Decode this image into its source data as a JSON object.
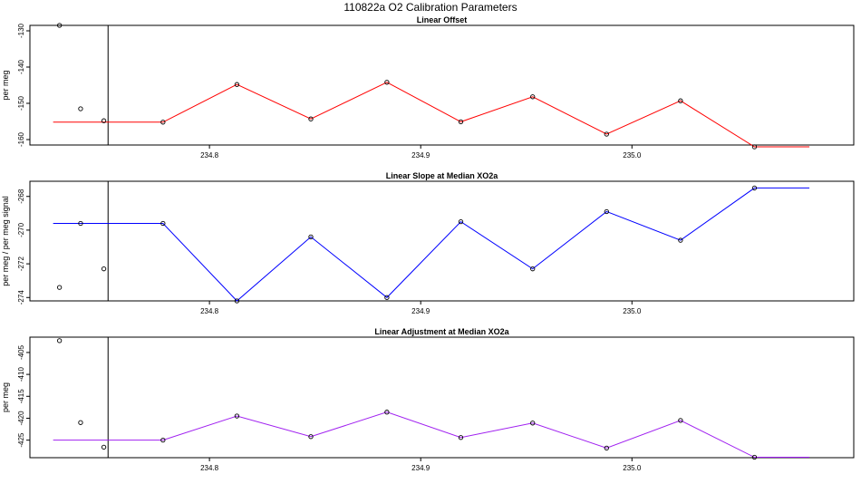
{
  "page_title": "110822a   O2 Calibration Parameters",
  "chart_data": [
    {
      "type": "line",
      "title": "Linear Offset",
      "ylabel": "per meg",
      "xlim": [
        234.715,
        235.105
      ],
      "ylim": [
        -161.5,
        -128.5
      ],
      "xticks": [
        {
          "value": 234.8,
          "label": "234.8"
        },
        {
          "value": 234.9,
          "label": "234.9"
        },
        {
          "value": 235.0,
          "label": "235.0"
        }
      ],
      "yticks": [
        {
          "value": -130,
          "label": "-130"
        },
        {
          "value": -140,
          "label": "-140"
        },
        {
          "value": -150,
          "label": "-150"
        },
        {
          "value": -160,
          "label": "-160"
        }
      ],
      "vline_x": 234.752,
      "color": "#ff0000",
      "initial_line": {
        "x": [
          234.726,
          234.752
        ],
        "y": [
          -155.2,
          -155.2
        ]
      },
      "series": [
        {
          "x": [
            234.752,
            234.778,
            234.813,
            234.848,
            234.884,
            234.919,
            234.953,
            234.988,
            235.023,
            235.058,
            235.084
          ],
          "y": [
            -155.2,
            -155.2,
            -144.8,
            -154.3,
            -144.2,
            -155.1,
            -148.2,
            -158.5,
            -149.3,
            -162.0,
            -162.0
          ]
        }
      ],
      "points": {
        "x": [
          234.729,
          234.739,
          234.75,
          234.778,
          234.813,
          234.848,
          234.884,
          234.919,
          234.953,
          234.988,
          235.023,
          235.058
        ],
        "y": [
          -128.5,
          -151.5,
          -154.8,
          -155.2,
          -144.8,
          -154.3,
          -144.2,
          -155.1,
          -148.2,
          -158.5,
          -149.3,
          -162.0
        ]
      }
    },
    {
      "type": "line",
      "title": "Linear Slope at Median XO2a",
      "ylabel": "per meg / per meg signal",
      "xlim": [
        234.715,
        235.105
      ],
      "ylim": [
        -274.2,
        -267.1
      ],
      "xticks": [
        {
          "value": 234.8,
          "label": "234.8"
        },
        {
          "value": 234.9,
          "label": "234.9"
        },
        {
          "value": 235.0,
          "label": "235.0"
        }
      ],
      "yticks": [
        {
          "value": -268,
          "label": "-268"
        },
        {
          "value": -270,
          "label": "-270"
        },
        {
          "value": -272,
          "label": "-272"
        },
        {
          "value": -274,
          "label": "-274"
        }
      ],
      "vline_x": 234.752,
      "color": "#0000ff",
      "initial_line": {
        "x": [
          234.726,
          234.752
        ],
        "y": [
          -269.6,
          -269.6
        ]
      },
      "series": [
        {
          "x": [
            234.752,
            234.778,
            234.813,
            234.848,
            234.884,
            234.919,
            234.953,
            234.988,
            235.023,
            235.058,
            235.084
          ],
          "y": [
            -269.6,
            -269.6,
            -274.2,
            -270.4,
            -274.0,
            -269.5,
            -272.3,
            -268.9,
            -270.6,
            -267.5,
            -267.5
          ]
        }
      ],
      "points": {
        "x": [
          234.729,
          234.739,
          234.75,
          234.778,
          234.813,
          234.848,
          234.884,
          234.919,
          234.953,
          234.988,
          235.023,
          235.058
        ],
        "y": [
          -273.4,
          -269.6,
          -272.3,
          -269.6,
          -274.2,
          -270.4,
          -274.0,
          -269.5,
          -272.3,
          -268.9,
          -270.6,
          -267.5
        ]
      }
    },
    {
      "type": "line",
      "title": "Linear Adjustment at Median XO2a",
      "ylabel": "per meg",
      "xlim": [
        234.715,
        235.105
      ],
      "ylim": [
        -429.0,
        -401.5
      ],
      "xticks": [
        {
          "value": 234.8,
          "label": "234.8"
        },
        {
          "value": 234.9,
          "label": "234.9"
        },
        {
          "value": 235.0,
          "label": "235.0"
        }
      ],
      "yticks": [
        {
          "value": -405,
          "label": "-405"
        },
        {
          "value": -410,
          "label": "-410"
        },
        {
          "value": -415,
          "label": "-415"
        },
        {
          "value": -420,
          "label": "-420"
        },
        {
          "value": -425,
          "label": "-425"
        }
      ],
      "vline_x": 234.752,
      "color": "#a020f0",
      "initial_line": {
        "x": [
          234.726,
          234.752
        ],
        "y": [
          -425.0,
          -425.0
        ]
      },
      "series": [
        {
          "x": [
            234.752,
            234.778,
            234.813,
            234.848,
            234.884,
            234.919,
            234.953,
            234.988,
            235.023,
            235.058,
            235.084
          ],
          "y": [
            -425.0,
            -425.0,
            -419.5,
            -424.2,
            -418.6,
            -424.4,
            -421.1,
            -426.8,
            -420.5,
            -428.9,
            -428.9
          ]
        }
      ],
      "points": {
        "x": [
          234.729,
          234.739,
          234.75,
          234.778,
          234.813,
          234.848,
          234.884,
          234.919,
          234.953,
          234.988,
          235.023,
          235.058
        ],
        "y": [
          -402.3,
          -421.0,
          -426.6,
          -425.0,
          -419.5,
          -424.2,
          -418.6,
          -424.4,
          -421.1,
          -426.8,
          -420.5,
          -428.9
        ]
      }
    }
  ]
}
